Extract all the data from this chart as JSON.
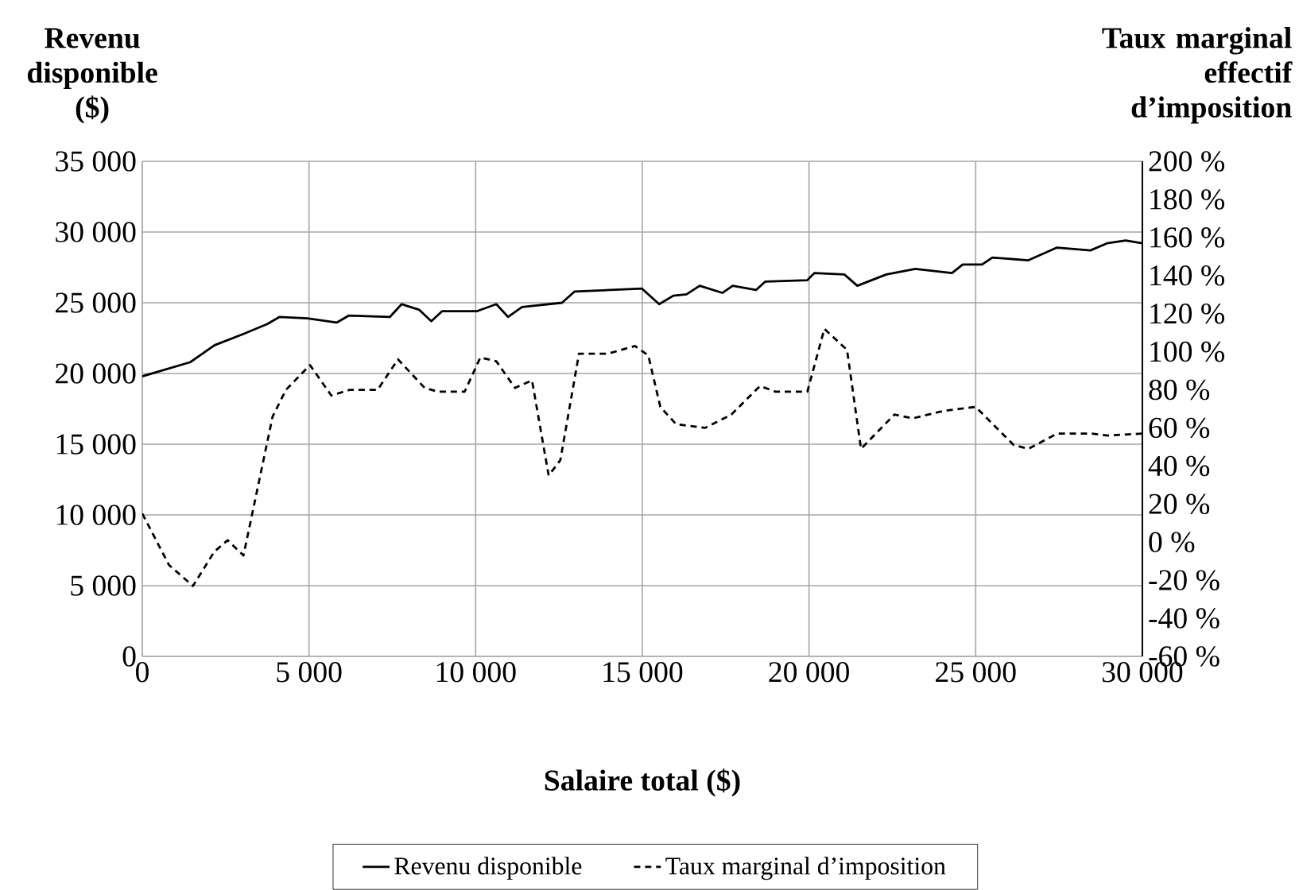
{
  "chart_data": {
    "type": "line",
    "xlabel": "Salaire total ($)",
    "ylabel": "Revenu disponible ($)",
    "y2label": "Taux marginal effectif d’imposition",
    "xlim": [
      0,
      30000
    ],
    "xticks": [
      0,
      {
        "value": 5000,
        "label": "5 000"
      },
      {
        "value": 10000,
        "label": "10 000"
      },
      {
        "value": 15000,
        "label": "15 000"
      },
      {
        "value": 20000,
        "label": "20 000"
      },
      {
        "value": 25000,
        "label": "25 000"
      },
      {
        "value": 30000,
        "label": "30 000"
      }
    ],
    "ylim": [
      0,
      35000
    ],
    "yticks": [
      0,
      {
        "value": 5000,
        "label": "5 000"
      },
      {
        "value": 10000,
        "label": "10 000"
      },
      {
        "value": 15000,
        "label": "15 000"
      },
      {
        "value": 20000,
        "label": "20 000"
      },
      {
        "value": 25000,
        "label": "25 000"
      },
      {
        "value": 30000,
        "label": "30 000"
      },
      {
        "value": 35000,
        "label": "35 000"
      }
    ],
    "y2lim": [
      -60,
      200
    ],
    "y2ticks": [
      {
        "value": -60,
        "label": "-60 %"
      },
      {
        "value": -40,
        "label": "-40 %"
      },
      {
        "value": -20,
        "label": "-20 %"
      },
      {
        "value": 0,
        "label": "0 %"
      },
      {
        "value": 20,
        "label": "20 %"
      },
      {
        "value": 40,
        "label": "40 %"
      },
      {
        "value": 60,
        "label": "60 %"
      },
      {
        "value": 80,
        "label": "80 %"
      },
      {
        "value": 100,
        "label": "100 %"
      },
      {
        "value": 120,
        "label": "120 %"
      },
      {
        "value": 140,
        "label": "140 %"
      },
      {
        "value": 160,
        "label": "160 %"
      },
      {
        "value": 180,
        "label": "180 %"
      },
      {
        "value": 200,
        "label": "200 %"
      }
    ],
    "grid": true,
    "legend": "bottom",
    "marker": "none",
    "series": [
      {
        "name": "Revenu disponible",
        "color": "#000000",
        "line_style": "solid",
        "x": [
          0,
          1440,
          2170,
          3035,
          3750,
          4120,
          4950,
          5830,
          6200,
          7430,
          7780,
          8310,
          8670,
          8990,
          10030,
          10620,
          10970,
          11390,
          12590,
          12970,
          14990,
          15505,
          15930,
          16325,
          16720,
          17400,
          17710,
          18410,
          18690,
          19950,
          20160,
          21060,
          21450,
          22320,
          23190,
          24290,
          24610,
          25190,
          25500,
          26580,
          27440,
          28440,
          28940,
          29500,
          30000
        ],
        "values": [
          19800,
          20800,
          22000,
          22800,
          23500,
          24000,
          23900,
          23600,
          24100,
          24000,
          24900,
          24500,
          23700,
          24400,
          24400,
          24900,
          24000,
          24700,
          25000,
          25800,
          26000,
          24900,
          25500,
          25600,
          26200,
          25700,
          26200,
          25900,
          26500,
          26600,
          27100,
          27000,
          26200,
          27000,
          27400,
          27100,
          27700,
          27700,
          28200,
          28000,
          28900,
          28700,
          29200,
          29400,
          29200
        ]
      },
      {
        "name": "Taux marginal d’imposition",
        "color": "#000000",
        "line_style": "dashed",
        "axis": "y2",
        "x": [
          0,
          800,
          1520,
          2160,
          2560,
          3035,
          3910,
          4310,
          5030,
          5670,
          6230,
          7060,
          7670,
          8470,
          8870,
          9670,
          10140,
          10620,
          11180,
          11690,
          12190,
          12540,
          13100,
          13980,
          14780,
          15180,
          15540,
          16010,
          16880,
          17670,
          18530,
          19000,
          19950,
          20460,
          21140,
          21560,
          22560,
          23110,
          24050,
          25000,
          26140,
          26580,
          27440,
          28470,
          28970,
          30000
        ],
        "values": [
          15,
          -12,
          -23,
          -5,
          1,
          -7,
          66,
          80,
          93,
          77,
          80,
          80,
          96,
          81,
          79,
          79,
          97,
          95,
          81,
          85,
          35,
          43,
          99,
          99,
          103,
          98,
          71,
          62,
          60,
          67,
          82,
          79,
          79,
          112,
          101,
          49,
          67,
          65,
          69,
          71,
          51,
          49,
          57,
          57,
          56,
          57
        ]
      }
    ]
  }
}
